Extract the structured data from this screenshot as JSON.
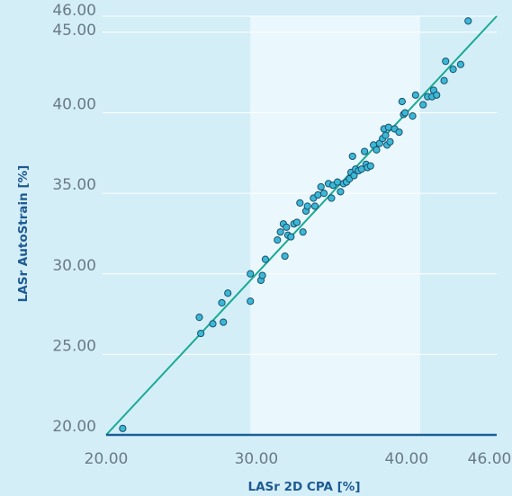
{
  "chart_data": {
    "type": "scatter",
    "title": "",
    "xlabel": "LASr 2D CPA [%]",
    "ylabel": "LASr AutoStrain [%]",
    "xlim": [
      20,
      46
    ],
    "ylim": [
      20,
      46
    ],
    "x_ticks": [
      "20.00",
      "30.00",
      "40.00",
      "46.00"
    ],
    "y_ticks": [
      "20.00",
      "25.00",
      "30.00",
      "35.00",
      "40.00",
      "45.00",
      "46.00"
    ],
    "highlight_band": [
      29.6,
      40.9
    ],
    "identity_line": true,
    "grid": true,
    "colors": {
      "background": "#d4eef8",
      "band": "#eaf7fc",
      "line": "#1aaa93",
      "marker": "#3cb8d6",
      "marker_edge": "#17506d",
      "axis": "#1c5f97"
    },
    "points": [
      [
        21.1,
        20.4
      ],
      [
        26.2,
        27.3
      ],
      [
        26.3,
        26.3
      ],
      [
        27.1,
        26.9
      ],
      [
        27.7,
        28.2
      ],
      [
        27.8,
        27.0
      ],
      [
        28.1,
        28.8
      ],
      [
        29.6,
        30.0
      ],
      [
        29.6,
        28.3
      ],
      [
        30.3,
        29.6
      ],
      [
        30.4,
        29.9
      ],
      [
        30.6,
        30.9
      ],
      [
        31.4,
        32.1
      ],
      [
        31.6,
        32.6
      ],
      [
        31.8,
        33.1
      ],
      [
        31.9,
        31.1
      ],
      [
        32.0,
        32.9
      ],
      [
        32.1,
        32.4
      ],
      [
        32.3,
        32.3
      ],
      [
        32.5,
        33.1
      ],
      [
        32.7,
        33.2
      ],
      [
        32.9,
        34.4
      ],
      [
        33.1,
        32.6
      ],
      [
        33.3,
        33.9
      ],
      [
        33.4,
        34.2
      ],
      [
        33.8,
        34.7
      ],
      [
        33.9,
        34.2
      ],
      [
        34.1,
        34.9
      ],
      [
        34.3,
        35.4
      ],
      [
        34.5,
        35.0
      ],
      [
        34.8,
        35.6
      ],
      [
        35.0,
        34.7
      ],
      [
        35.1,
        35.5
      ],
      [
        35.4,
        35.7
      ],
      [
        35.6,
        35.1
      ],
      [
        35.8,
        35.6
      ],
      [
        36.0,
        35.7
      ],
      [
        36.2,
        35.9
      ],
      [
        36.3,
        36.3
      ],
      [
        36.4,
        37.3
      ],
      [
        36.5,
        36.1
      ],
      [
        36.6,
        36.5
      ],
      [
        36.8,
        36.4
      ],
      [
        37.0,
        36.5
      ],
      [
        37.2,
        37.6
      ],
      [
        37.3,
        36.8
      ],
      [
        37.4,
        36.6
      ],
      [
        37.6,
        36.7
      ],
      [
        37.8,
        38.0
      ],
      [
        38.0,
        37.7
      ],
      [
        38.2,
        38.1
      ],
      [
        38.4,
        38.4
      ],
      [
        38.5,
        39.0
      ],
      [
        38.6,
        38.6
      ],
      [
        38.7,
        38.0
      ],
      [
        38.8,
        39.1
      ],
      [
        38.9,
        38.2
      ],
      [
        39.2,
        39.0
      ],
      [
        39.5,
        38.8
      ],
      [
        39.7,
        40.7
      ],
      [
        39.8,
        39.9
      ],
      [
        39.9,
        40.0
      ],
      [
        40.4,
        39.8
      ],
      [
        40.6,
        41.1
      ],
      [
        41.1,
        40.5
      ],
      [
        41.4,
        41.0
      ],
      [
        41.7,
        41.0
      ],
      [
        41.8,
        41.4
      ],
      [
        42.0,
        41.1
      ],
      [
        42.5,
        42.0
      ],
      [
        42.6,
        43.2
      ],
      [
        43.1,
        42.7
      ],
      [
        43.6,
        43.0
      ],
      [
        44.1,
        45.7
      ]
    ]
  }
}
